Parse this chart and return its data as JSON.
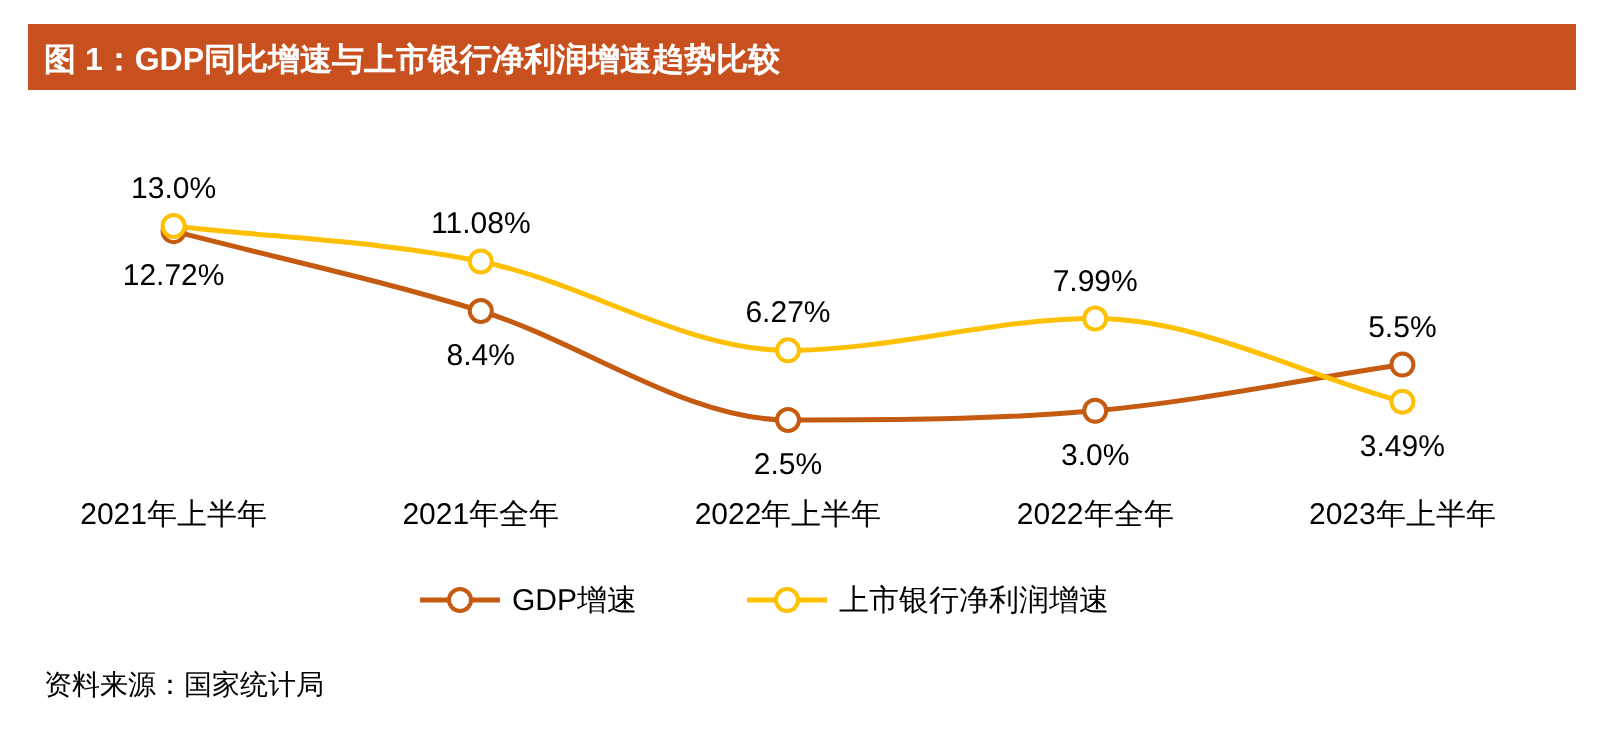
{
  "chart_data": {
    "type": "line",
    "title": "图 1：GDP同比增速与上市银行净利润增速趋势比较",
    "categories": [
      "2021年上半年",
      "2021年全年",
      "2022年上半年",
      "2022年全年",
      "2023年上半年"
    ],
    "series": [
      {
        "name": "GDP增速",
        "color": "#c55a11",
        "values": [
          12.72,
          8.4,
          2.5,
          3.0,
          5.5
        ],
        "value_labels": [
          "12.72%",
          "8.4%",
          "2.5%",
          "3.0%",
          "5.5%"
        ]
      },
      {
        "name": "上市银行净利润增速",
        "color": "#ffc000",
        "values": [
          13.0,
          11.08,
          6.27,
          7.99,
          3.49
        ],
        "value_labels": [
          "13.0%",
          "11.08%",
          "6.27%",
          "7.99%",
          "3.49%"
        ]
      }
    ],
    "tick_labels": "x",
    "grid": false,
    "legend": "bottom",
    "marker": "circle",
    "line_style": "solid",
    "annotations": [
      "资料来源：国家统计局"
    ]
  }
}
